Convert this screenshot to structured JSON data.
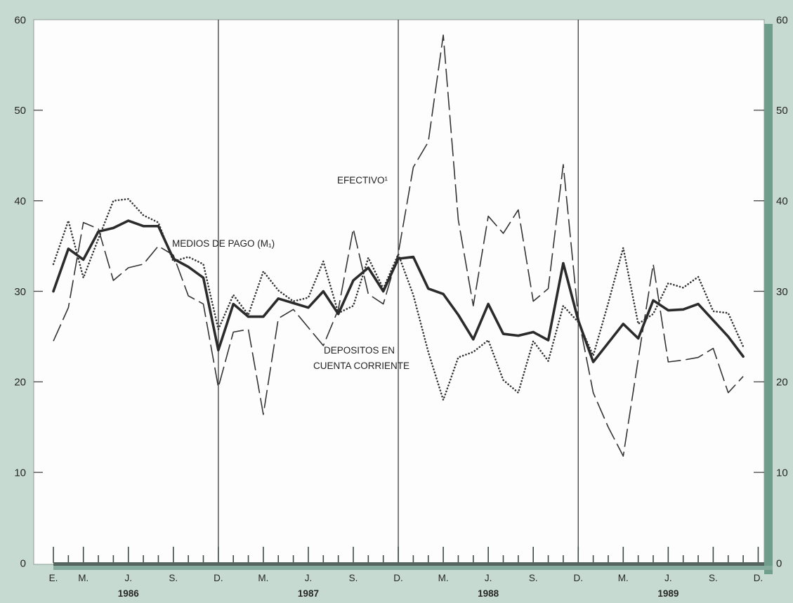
{
  "chart_data": {
    "type": "line",
    "x": [
      "1986-01",
      "1986-02",
      "1986-03",
      "1986-04",
      "1986-05",
      "1986-06",
      "1986-07",
      "1986-08",
      "1986-09",
      "1986-10",
      "1986-11",
      "1986-12",
      "1987-01",
      "1987-02",
      "1987-03",
      "1987-04",
      "1987-05",
      "1987-06",
      "1987-07",
      "1987-08",
      "1987-09",
      "1987-10",
      "1987-11",
      "1987-12",
      "1988-01",
      "1988-02",
      "1988-03",
      "1988-04",
      "1988-05",
      "1988-06",
      "1988-07",
      "1988-08",
      "1988-09",
      "1988-10",
      "1988-11",
      "1988-12",
      "1989-01",
      "1989-02",
      "1989-03",
      "1989-04",
      "1989-05",
      "1989-06",
      "1989-07",
      "1989-08",
      "1989-09",
      "1989-10",
      "1989-11"
    ],
    "xlim": [
      "1986-01",
      "1989-12"
    ],
    "ylim": [
      0,
      60
    ],
    "yticks": [
      0,
      10,
      20,
      30,
      40,
      50,
      60
    ],
    "secondary_y_axis": true,
    "grid": false,
    "x_ticks": [
      {
        "x": "1986-01",
        "label": "E."
      },
      {
        "x": "1986-03",
        "label": "M."
      },
      {
        "x": "1986-06",
        "label": "J."
      },
      {
        "x": "1986-09",
        "label": "S."
      },
      {
        "x": "1986-12",
        "label": "D."
      },
      {
        "x": "1987-03",
        "label": "M."
      },
      {
        "x": "1987-06",
        "label": "J."
      },
      {
        "x": "1987-09",
        "label": "S."
      },
      {
        "x": "1987-12",
        "label": "D."
      },
      {
        "x": "1988-03",
        "label": "M."
      },
      {
        "x": "1988-06",
        "label": "J."
      },
      {
        "x": "1988-09",
        "label": "S."
      },
      {
        "x": "1988-12",
        "label": "D."
      },
      {
        "x": "1989-03",
        "label": "M."
      },
      {
        "x": "1989-06",
        "label": "J."
      },
      {
        "x": "1989-09",
        "label": "S."
      },
      {
        "x": "1989-12",
        "label": "D."
      }
    ],
    "year_labels": [
      "1986",
      "1987",
      "1988",
      "1989"
    ],
    "vertical_lines": [
      "1986-12",
      "1987-12",
      "1988-12"
    ],
    "series": [
      {
        "label_lines": [
          "MEDIOS DE PAGO (M₁)"
        ],
        "line_style": "solid-thick",
        "color": "#2b2b2b",
        "values": [
          30.0,
          34.7,
          33.5,
          36.6,
          37.0,
          37.8,
          37.2,
          37.2,
          33.6,
          32.7,
          31.5,
          23.5,
          28.6,
          27.2,
          27.2,
          29.2,
          28.7,
          28.2,
          30.0,
          27.5,
          31.2,
          32.6,
          30.0,
          33.6,
          33.8,
          30.3,
          29.7,
          27.4,
          24.7,
          28.6,
          25.3,
          25.1,
          25.5,
          24.6,
          33.1,
          26.8,
          22.2,
          24.3,
          26.4,
          24.8,
          29.0,
          27.9,
          28.0,
          28.6,
          26.8,
          25.0,
          22.8
        ]
      },
      {
        "label_lines": [
          "EFECTIVO¹"
        ],
        "line_style": "long-dashed",
        "color": "#333333",
        "values": [
          24.5,
          28.2,
          37.6,
          36.9,
          31.2,
          32.6,
          33.0,
          35.0,
          34.0,
          29.5,
          28.6,
          19.4,
          25.5,
          25.8,
          16.4,
          27.0,
          28.0,
          26.0,
          24.0,
          28.0,
          36.9,
          29.7,
          28.6,
          34.2,
          43.7,
          46.5,
          58.3,
          37.9,
          28.4,
          38.3,
          36.4,
          39.0,
          28.9,
          30.3,
          44.0,
          27.2,
          18.8,
          15.0,
          11.8,
          22.5,
          33.0,
          22.2,
          22.4,
          22.7,
          23.7,
          18.8,
          20.6
        ]
      },
      {
        "label_lines": [
          "DEPOSITOS EN",
          "CUENTA CORRIENTE"
        ],
        "line_style": "dotted",
        "color": "#333333",
        "values": [
          33.0,
          37.8,
          31.5,
          35.8,
          40.0,
          40.2,
          38.4,
          37.6,
          33.3,
          33.8,
          33.0,
          25.8,
          29.6,
          27.4,
          32.2,
          30.1,
          28.9,
          29.3,
          33.3,
          27.6,
          28.4,
          33.7,
          30.3,
          34.1,
          29.6,
          23.3,
          18.0,
          22.7,
          23.3,
          24.6,
          20.2,
          18.8,
          24.5,
          22.3,
          28.4,
          26.6,
          22.9,
          28.7,
          34.8,
          26.4,
          27.5,
          30.9,
          30.4,
          31.6,
          27.8,
          27.6,
          23.9
        ]
      }
    ]
  }
}
